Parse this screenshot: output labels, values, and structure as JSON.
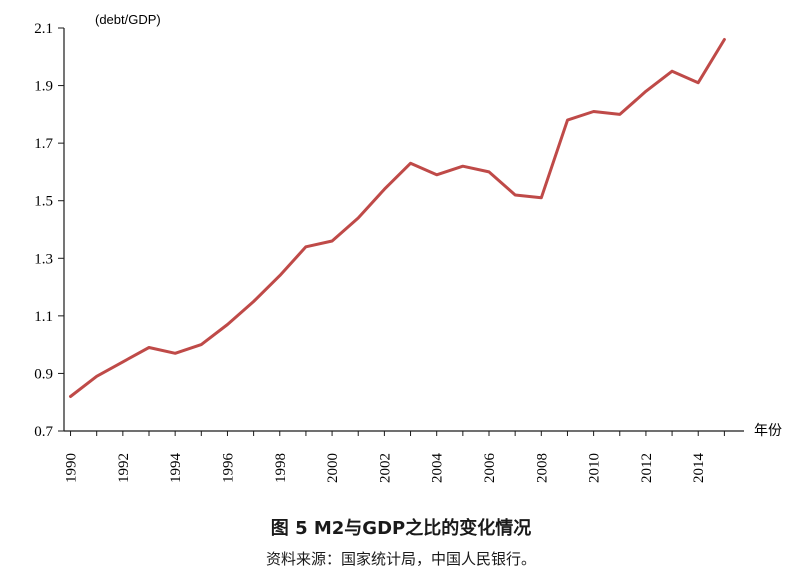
{
  "caption": "图 5 M2与GDP之比的变化情况",
  "source": "资料来源：国家统计局，中国人民银行。",
  "chart_data": {
    "type": "line",
    "ylabel": "(debt/GDP)",
    "xlabel": "年份",
    "ylim": [
      0.7,
      2.1
    ],
    "yticks": [
      "2.1",
      "1.9",
      "1.7",
      "1.5",
      "1.3",
      "1.1",
      "0.9",
      "0.7"
    ],
    "xtick_labels": [
      "1990",
      "1992",
      "1994",
      "1996",
      "1998",
      "2000",
      "2002",
      "2004",
      "2006",
      "2008",
      "2010",
      "2012",
      "2014"
    ],
    "x": [
      1990,
      1991,
      1992,
      1993,
      1994,
      1995,
      1996,
      1997,
      1998,
      1999,
      2000,
      2001,
      2002,
      2003,
      2004,
      2005,
      2006,
      2007,
      2008,
      2009,
      2010,
      2011,
      2012,
      2013,
      2014,
      2015
    ],
    "series": [
      {
        "values": [
          0.82,
          0.89,
          0.94,
          0.99,
          0.97,
          1.0,
          1.07,
          1.15,
          1.24,
          1.34,
          1.36,
          1.44,
          1.54,
          1.63,
          1.59,
          1.62,
          1.6,
          1.52,
          1.51,
          1.78,
          1.81,
          1.8,
          1.88,
          1.95,
          1.91,
          2.06
        ],
        "color": "#bf4a48"
      }
    ],
    "grid": false,
    "axis_color": "#1a1a1a"
  }
}
